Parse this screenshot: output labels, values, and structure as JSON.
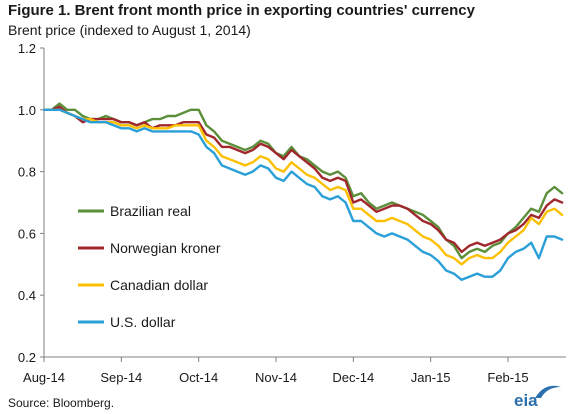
{
  "title": "Figure 1.  Brent front month price in exporting countries' currency",
  "subtitle": "Brent price (indexed to August 1, 2014)",
  "source": "Source:  Bloomberg.",
  "logo_text": "eia",
  "colors": {
    "brazilian_real": "#5b8f3a",
    "norwegian_kroner": "#a0282c",
    "canadian_dollar": "#fcc000",
    "us_dollar": "#2a9fd8",
    "axis": "#808080",
    "logo": "#2b6fae"
  },
  "chart_data": {
    "type": "line",
    "title": "Figure 1.  Brent front month price in exporting countries' currency",
    "ylabel": "Brent price (indexed to August 1, 2014)",
    "ylim": [
      0.2,
      1.2
    ],
    "yticks": [
      "0.2",
      "0.4",
      "0.6",
      "0.8",
      "1.0",
      "1.2"
    ],
    "xticks": [
      "Aug-14",
      "Sep-14",
      "Oct-14",
      "Nov-14",
      "Dec-14",
      "Jan-15",
      "Feb-15"
    ],
    "xlim": [
      0,
      6.75
    ],
    "grid": false,
    "legend_position": "left, inside plot",
    "x": [
      0.0,
      0.1,
      0.2,
      0.3,
      0.4,
      0.5,
      0.6,
      0.7,
      0.8,
      0.9,
      1.0,
      1.1,
      1.2,
      1.3,
      1.4,
      1.5,
      1.6,
      1.7,
      1.8,
      1.9,
      2.0,
      2.1,
      2.2,
      2.3,
      2.4,
      2.5,
      2.6,
      2.7,
      2.8,
      2.9,
      3.0,
      3.1,
      3.2,
      3.3,
      3.4,
      3.5,
      3.6,
      3.7,
      3.8,
      3.9,
      4.0,
      4.1,
      4.2,
      4.3,
      4.4,
      4.5,
      4.6,
      4.7,
      4.8,
      4.9,
      5.0,
      5.1,
      5.2,
      5.3,
      5.4,
      5.5,
      5.6,
      5.7,
      5.8,
      5.9,
      6.0,
      6.1,
      6.2,
      6.3,
      6.4,
      6.5,
      6.6,
      6.7
    ],
    "series": [
      {
        "name": "Brazilian real",
        "color_key": "brazilian_real",
        "values": [
          1.0,
          1.0,
          1.02,
          1.0,
          1.0,
          0.98,
          0.97,
          0.97,
          0.98,
          0.97,
          0.96,
          0.96,
          0.95,
          0.96,
          0.97,
          0.97,
          0.98,
          0.98,
          0.99,
          1.0,
          1.0,
          0.95,
          0.93,
          0.9,
          0.89,
          0.88,
          0.87,
          0.88,
          0.9,
          0.89,
          0.86,
          0.85,
          0.88,
          0.85,
          0.84,
          0.82,
          0.8,
          0.79,
          0.8,
          0.78,
          0.72,
          0.73,
          0.7,
          0.68,
          0.69,
          0.7,
          0.69,
          0.68,
          0.67,
          0.66,
          0.64,
          0.62,
          0.58,
          0.56,
          0.52,
          0.54,
          0.55,
          0.54,
          0.56,
          0.57,
          0.6,
          0.62,
          0.65,
          0.68,
          0.67,
          0.73,
          0.75,
          0.73
        ]
      },
      {
        "name": "Norwegian kroner",
        "color_key": "norwegian_kroner",
        "values": [
          1.0,
          1.0,
          1.01,
          0.99,
          0.98,
          0.96,
          0.97,
          0.97,
          0.97,
          0.97,
          0.96,
          0.96,
          0.95,
          0.96,
          0.94,
          0.95,
          0.95,
          0.95,
          0.96,
          0.96,
          0.96,
          0.92,
          0.91,
          0.88,
          0.88,
          0.87,
          0.86,
          0.87,
          0.89,
          0.88,
          0.86,
          0.84,
          0.87,
          0.85,
          0.83,
          0.81,
          0.78,
          0.77,
          0.78,
          0.77,
          0.7,
          0.71,
          0.69,
          0.67,
          0.68,
          0.69,
          0.69,
          0.68,
          0.66,
          0.64,
          0.63,
          0.61,
          0.58,
          0.57,
          0.54,
          0.56,
          0.57,
          0.56,
          0.57,
          0.58,
          0.6,
          0.61,
          0.63,
          0.66,
          0.65,
          0.69,
          0.71,
          0.7
        ]
      },
      {
        "name": "Canadian dollar",
        "color_key": "canadian_dollar",
        "values": [
          1.0,
          1.0,
          1.0,
          0.99,
          0.98,
          0.97,
          0.97,
          0.96,
          0.96,
          0.96,
          0.95,
          0.95,
          0.94,
          0.95,
          0.94,
          0.94,
          0.94,
          0.95,
          0.95,
          0.95,
          0.95,
          0.9,
          0.88,
          0.85,
          0.84,
          0.83,
          0.82,
          0.83,
          0.85,
          0.84,
          0.81,
          0.8,
          0.83,
          0.81,
          0.79,
          0.78,
          0.76,
          0.74,
          0.75,
          0.74,
          0.68,
          0.68,
          0.66,
          0.64,
          0.64,
          0.65,
          0.64,
          0.63,
          0.61,
          0.59,
          0.58,
          0.56,
          0.53,
          0.52,
          0.5,
          0.52,
          0.53,
          0.52,
          0.52,
          0.54,
          0.57,
          0.59,
          0.61,
          0.65,
          0.63,
          0.67,
          0.68,
          0.66
        ]
      },
      {
        "name": "U.S. dollar",
        "color_key": "us_dollar",
        "values": [
          1.0,
          1.0,
          1.0,
          0.99,
          0.98,
          0.97,
          0.96,
          0.96,
          0.96,
          0.95,
          0.94,
          0.94,
          0.93,
          0.94,
          0.93,
          0.93,
          0.93,
          0.93,
          0.93,
          0.93,
          0.92,
          0.88,
          0.86,
          0.82,
          0.81,
          0.8,
          0.79,
          0.8,
          0.82,
          0.81,
          0.78,
          0.77,
          0.8,
          0.78,
          0.76,
          0.75,
          0.72,
          0.71,
          0.72,
          0.7,
          0.64,
          0.64,
          0.62,
          0.6,
          0.59,
          0.6,
          0.59,
          0.58,
          0.56,
          0.54,
          0.53,
          0.51,
          0.48,
          0.47,
          0.45,
          0.46,
          0.47,
          0.46,
          0.46,
          0.48,
          0.52,
          0.54,
          0.55,
          0.57,
          0.52,
          0.59,
          0.59,
          0.58
        ]
      }
    ]
  }
}
